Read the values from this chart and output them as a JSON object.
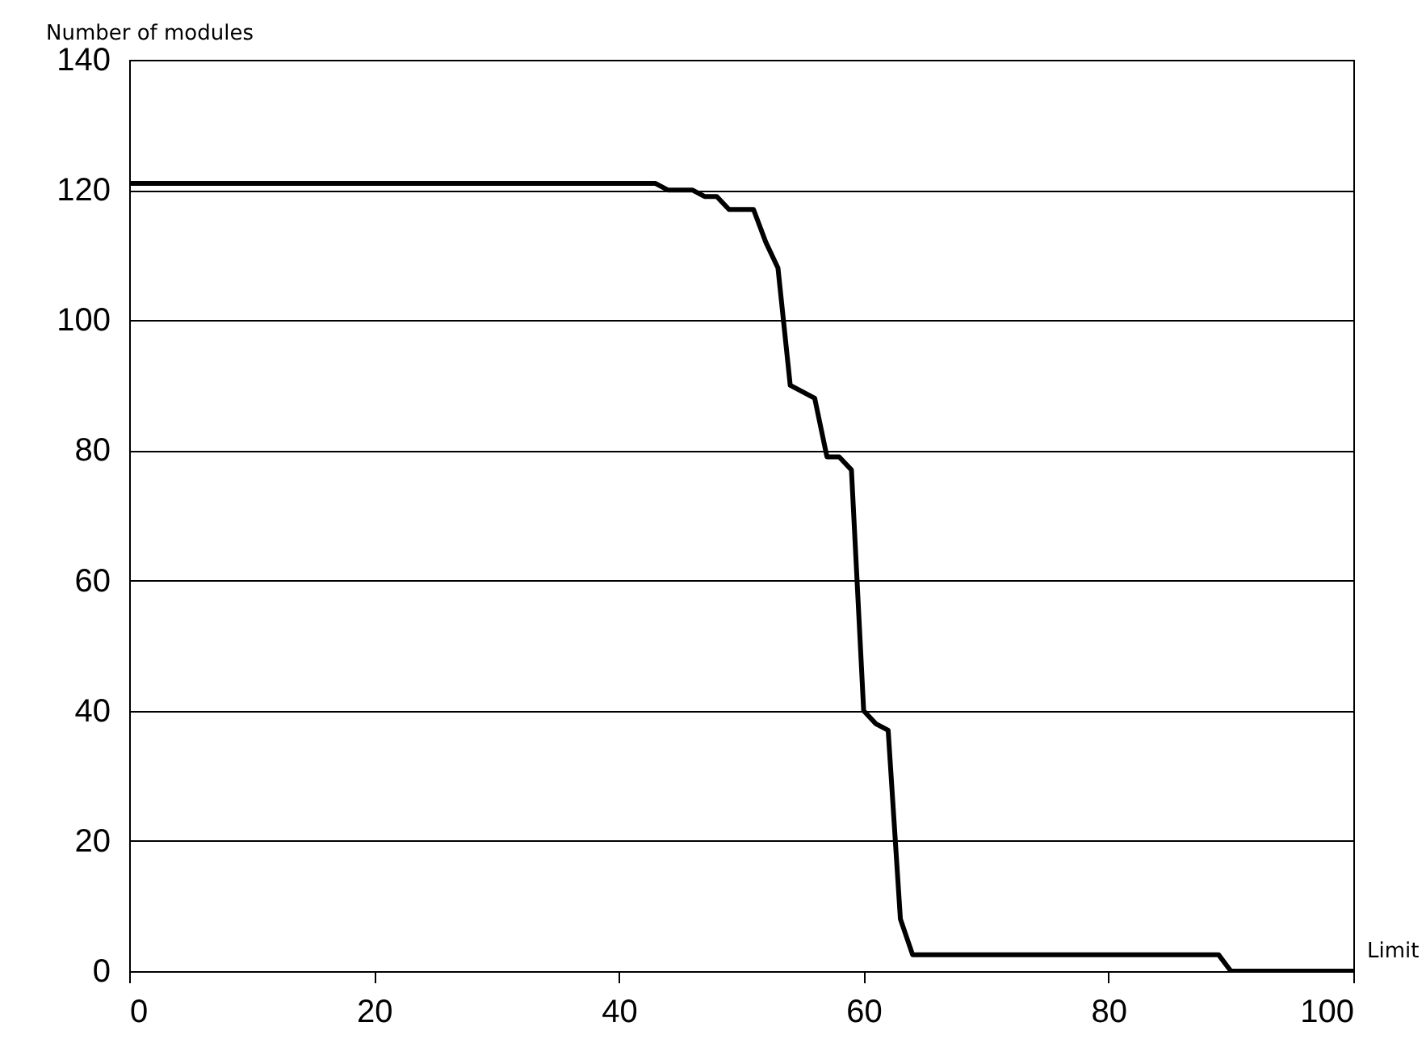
{
  "chart_data": {
    "type": "line",
    "xlabel": "Limit",
    "ylabel": "Number of modules",
    "x": [
      0,
      43,
      44,
      46,
      47,
      48,
      49,
      51,
      52,
      53,
      54,
      56,
      57,
      58,
      59,
      60,
      61,
      62,
      63,
      64,
      89,
      90,
      100
    ],
    "series": [
      {
        "color": "#000000",
        "values": [
          121,
          121,
          120,
          120,
          119,
          119,
          117,
          117,
          112,
          108,
          90,
          88,
          79,
          79,
          77,
          40,
          38,
          37,
          8,
          2.5,
          2.5,
          0,
          0
        ]
      }
    ],
    "xlim": [
      0,
      100
    ],
    "xticks": [
      0,
      20,
      40,
      60,
      80,
      100
    ],
    "ylim": [
      0,
      140
    ],
    "yticks": [
      0,
      20,
      40,
      60,
      80,
      100,
      120,
      140
    ],
    "grid": "y",
    "legend": false,
    "marker": "none",
    "line_style": "solid"
  }
}
